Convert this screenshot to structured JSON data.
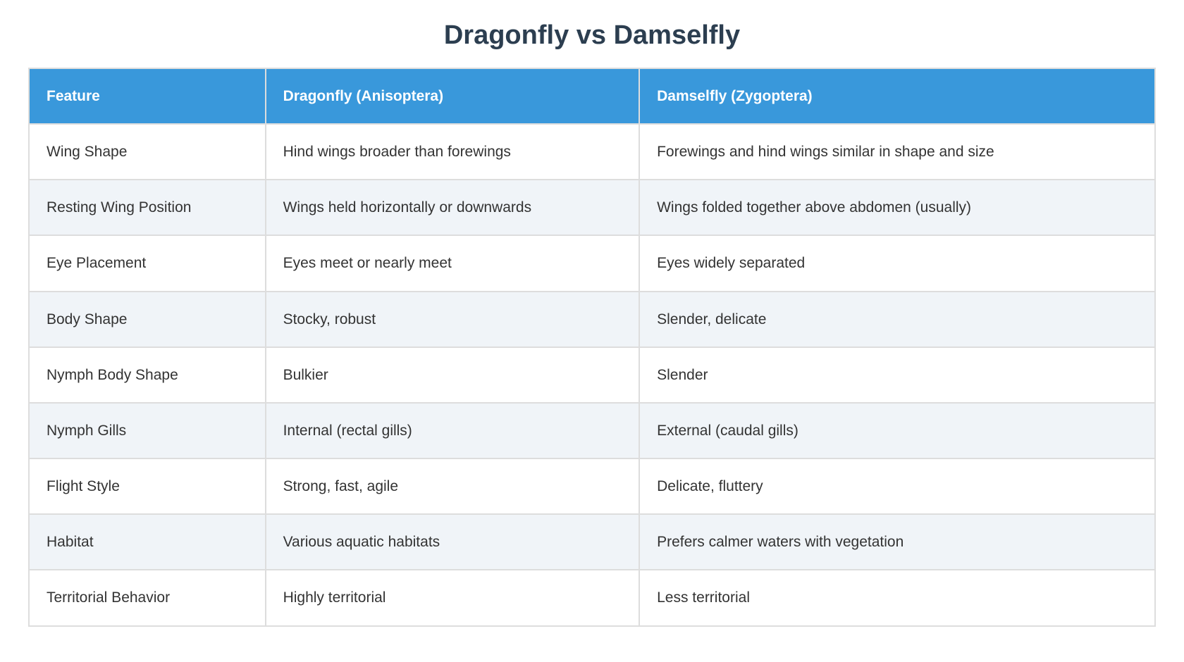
{
  "page": {
    "title": "Dragonfly vs Damselfly"
  },
  "colors": {
    "header_bg": "#3998db",
    "header_text": "#ffffff",
    "title_text": "#2c3e50",
    "zebra_row_bg": "#f0f4f8",
    "row_bg": "#ffffff",
    "border": "#dddddd",
    "cell_text": "#333333"
  },
  "table": {
    "headers": [
      "Feature",
      "Dragonfly (Anisoptera)",
      "Damselfly (Zygoptera)"
    ],
    "rows": [
      [
        "Wing Shape",
        "Hind wings broader than forewings",
        "Forewings and hind wings similar in shape and size"
      ],
      [
        "Resting Wing Position",
        "Wings held horizontally or downwards",
        "Wings folded together above abdomen (usually)"
      ],
      [
        "Eye Placement",
        "Eyes meet or nearly meet",
        "Eyes widely separated"
      ],
      [
        "Body Shape",
        "Stocky, robust",
        "Slender, delicate"
      ],
      [
        "Nymph Body Shape",
        "Bulkier",
        "Slender"
      ],
      [
        "Nymph Gills",
        "Internal (rectal gills)",
        "External (caudal gills)"
      ],
      [
        "Flight Style",
        "Strong, fast, agile",
        "Delicate, fluttery"
      ],
      [
        "Habitat",
        "Various aquatic habitats",
        "Prefers calmer waters with vegetation"
      ],
      [
        "Territorial Behavior",
        "Highly territorial",
        "Less territorial"
      ]
    ]
  }
}
